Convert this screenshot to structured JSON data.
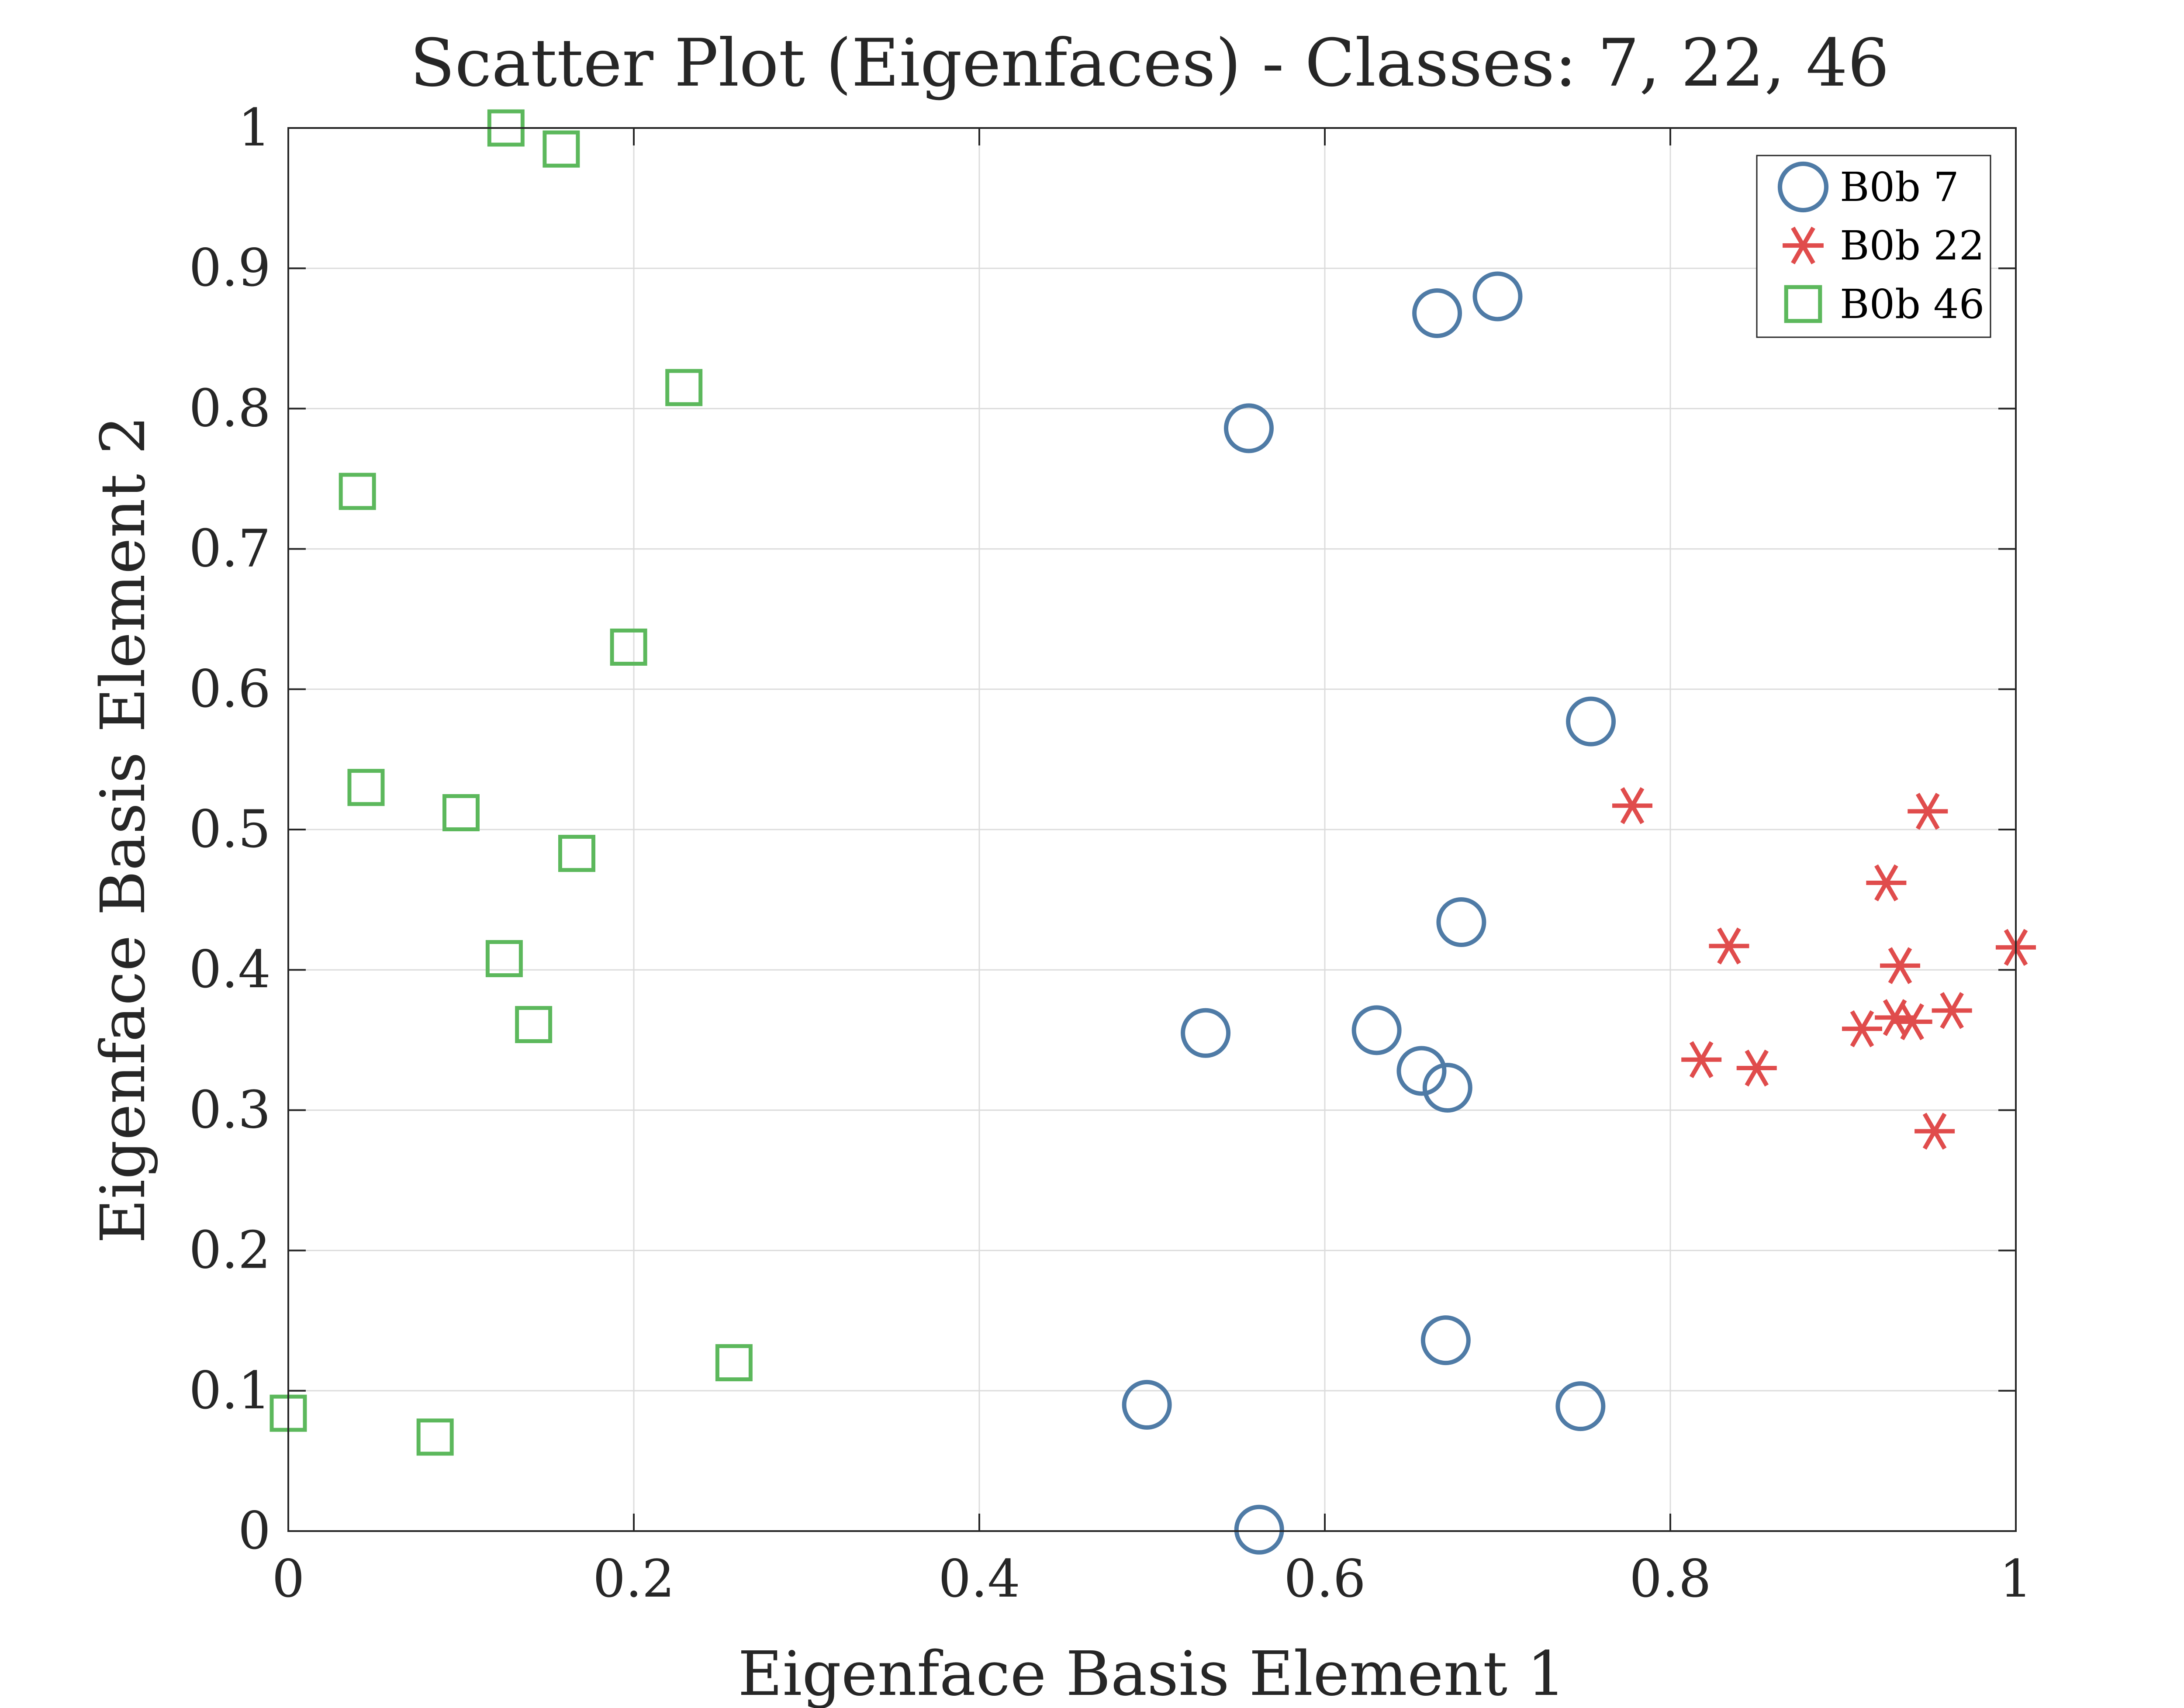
{
  "chart_data": {
    "type": "scatter",
    "title": "Scatter Plot (Eigenfaces) - Classes: 7, 22, 46",
    "xlabel": "Eigenface Basis Element 1",
    "ylabel": "Eigenface Basis Element 2",
    "xlim": [
      0,
      1
    ],
    "ylim": [
      0,
      1
    ],
    "x_ticks": [
      "0",
      "0.2",
      "0.4",
      "0.6",
      "0.8",
      "1"
    ],
    "x_tick_values": [
      0,
      0.2,
      0.4,
      0.6,
      0.8,
      1
    ],
    "y_ticks": [
      "0",
      "0.1",
      "0.2",
      "0.3",
      "0.4",
      "0.5",
      "0.6",
      "0.7",
      "0.8",
      "0.9",
      "1"
    ],
    "y_tick_values": [
      0,
      0.1,
      0.2,
      0.3,
      0.4,
      0.5,
      0.6,
      0.7,
      0.8,
      0.9,
      1
    ],
    "grid": true,
    "legend_position": "top-right",
    "series": [
      {
        "name": "B0b 7",
        "marker": "circle",
        "color": "#4f7ba6",
        "points": [
          [
            0.7,
            0.88
          ],
          [
            0.665,
            0.868
          ],
          [
            0.556,
            0.786
          ],
          [
            0.754,
            0.577
          ],
          [
            0.679,
            0.434
          ],
          [
            0.531,
            0.355
          ],
          [
            0.63,
            0.357
          ],
          [
            0.656,
            0.328
          ],
          [
            0.671,
            0.316
          ],
          [
            0.67,
            0.136
          ],
          [
            0.497,
            0.09
          ],
          [
            0.748,
            0.089
          ],
          [
            0.562,
            0.001
          ]
        ]
      },
      {
        "name": "B0b 22",
        "marker": "asterisk",
        "color": "#e04c4c",
        "points": [
          [
            0.778,
            0.517
          ],
          [
            0.949,
            0.513
          ],
          [
            0.925,
            0.462
          ],
          [
            0.834,
            0.417
          ],
          [
            1.0,
            0.416
          ],
          [
            0.933,
            0.403
          ],
          [
            0.911,
            0.358
          ],
          [
            0.93,
            0.366
          ],
          [
            0.94,
            0.363
          ],
          [
            0.963,
            0.371
          ],
          [
            0.818,
            0.336
          ],
          [
            0.85,
            0.33
          ],
          [
            0.953,
            0.285
          ]
        ]
      },
      {
        "name": "B0b 46",
        "marker": "square",
        "color": "#5cb85c",
        "points": [
          [
            0.126,
            1.0
          ],
          [
            0.158,
            0.985
          ],
          [
            0.229,
            0.815
          ],
          [
            0.04,
            0.741
          ],
          [
            0.197,
            0.63
          ],
          [
            0.045,
            0.53
          ],
          [
            0.1,
            0.512
          ],
          [
            0.167,
            0.483
          ],
          [
            0.125,
            0.408
          ],
          [
            0.142,
            0.361
          ],
          [
            0.258,
            0.12
          ],
          [
            0.0,
            0.084
          ],
          [
            0.085,
            0.067
          ]
        ]
      }
    ]
  }
}
